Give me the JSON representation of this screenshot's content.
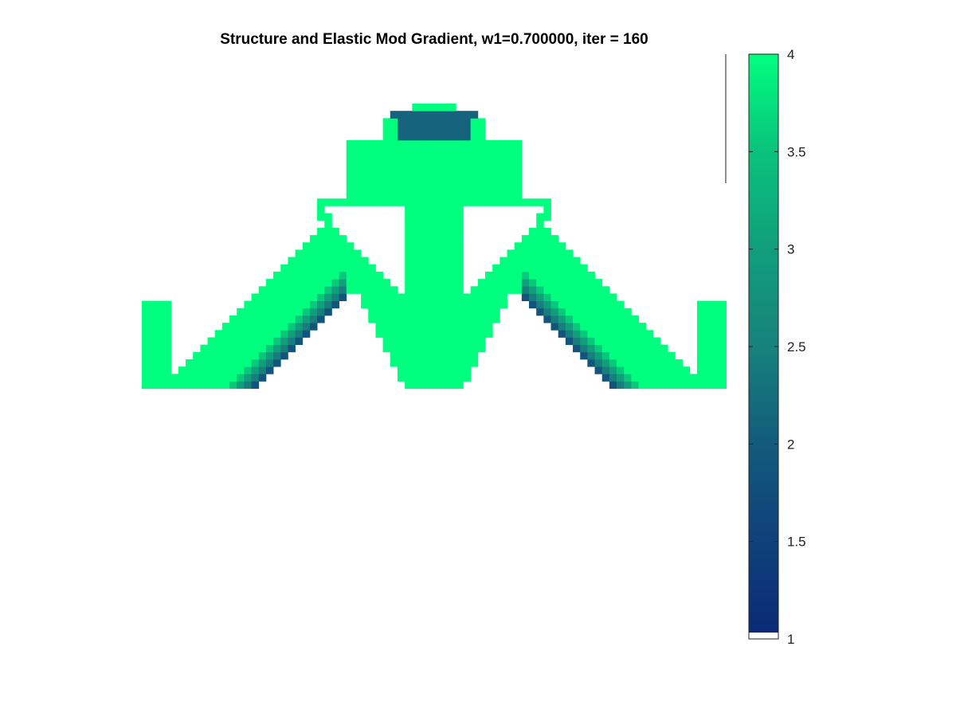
{
  "chart_data": {
    "type": "heatmap",
    "title": "Structure and Elastic Mod Gradient, w1=0.700000, iter = 160",
    "xlabel": "",
    "ylabel": "",
    "colorbar": {
      "clim": [
        1,
        4
      ],
      "ticks": [
        1,
        1.5,
        2,
        2.5,
        3,
        3.5,
        4
      ],
      "tick_labels": [
        "1",
        "1.5",
        "2",
        "2.5",
        "3",
        "3.5",
        "4"
      ],
      "colormap_stops": [
        {
          "value": 1.0,
          "color": "#0b2878"
        },
        {
          "value": 2.0,
          "color": "#135a7c"
        },
        {
          "value": 2.5,
          "color": "#17827c"
        },
        {
          "value": 3.0,
          "color": "#119e7c"
        },
        {
          "value": 3.5,
          "color": "#0ac27c"
        },
        {
          "value": 4.0,
          "color": "#00ff7f"
        }
      ],
      "bottom_band_color": "#ffffff"
    },
    "grid": false,
    "domain": {
      "nelx": 80,
      "nely": 45,
      "description_values": "Elastic modulus per element: solid members near 4, inner layers of the arch graded down toward ~2, voids empty"
    }
  }
}
